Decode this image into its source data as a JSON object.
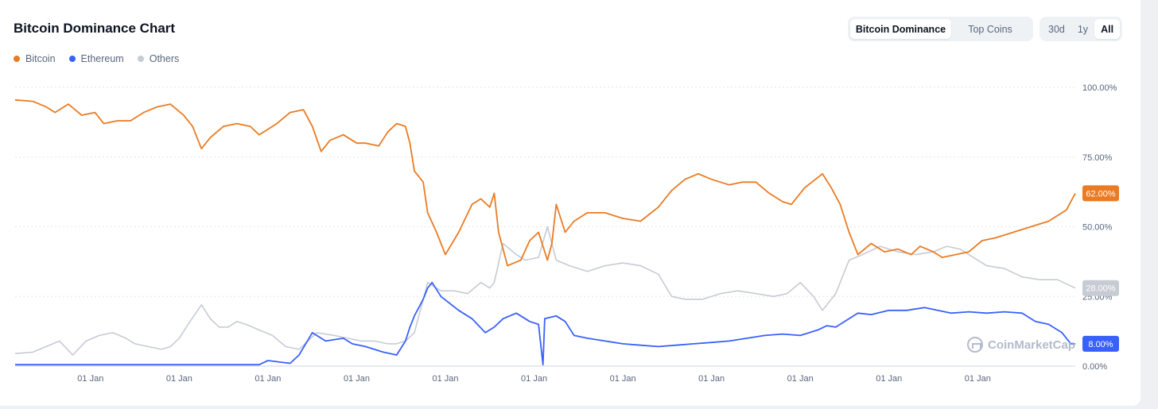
{
  "header": {
    "title": "Bitcoin Dominance Chart",
    "view_tabs": [
      {
        "label": "Bitcoin Dominance",
        "active": true
      },
      {
        "label": "Top Coins",
        "active": false
      }
    ],
    "range_tabs": [
      {
        "label": "30d",
        "active": false
      },
      {
        "label": "1y",
        "active": false
      },
      {
        "label": "All",
        "active": true
      }
    ]
  },
  "legend": [
    {
      "name": "Bitcoin",
      "color": "#ea7b23"
    },
    {
      "name": "Ethereum",
      "color": "#3861fb"
    },
    {
      "name": "Others",
      "color": "#c7cbd4"
    }
  ],
  "watermark": {
    "text": "CoinMarketCap",
    "icon": "coinmarketcap-logo-icon"
  },
  "chart_data": {
    "type": "line",
    "title": "Bitcoin Dominance Chart",
    "ylim": [
      0,
      100
    ],
    "y_ticks": [
      {
        "value": 100,
        "label": "100.00%"
      },
      {
        "value": 75,
        "label": "75.00%"
      },
      {
        "value": 50,
        "label": "50.00%"
      },
      {
        "value": 25,
        "label": "25.00%"
      },
      {
        "value": 0,
        "label": "0.00%"
      }
    ],
    "x_tick_labels": [
      "01 Jan",
      "01 Jan",
      "01 Jan",
      "01 Jan",
      "01 Jan",
      "01 Jan",
      "01 Jan",
      "01 Jan",
      "01 Jan",
      "01 Jan",
      "01 Jan"
    ],
    "x_tick_positions": [
      0.5,
      1.5,
      2.5,
      3.5,
      4.5,
      5.5,
      6.5,
      7.5,
      8.5,
      9.5,
      10.5
    ],
    "x_range": [
      -0.35,
      11.6
    ],
    "grid": true,
    "legend_placement": "top-left",
    "series": [
      {
        "name": "Bitcoin",
        "color": "#ea7b23",
        "current_label": "62.00%",
        "points": [
          [
            -0.35,
            95.5
          ],
          [
            -0.15,
            95
          ],
          [
            0,
            93
          ],
          [
            0.1,
            91
          ],
          [
            0.25,
            94
          ],
          [
            0.4,
            90
          ],
          [
            0.55,
            91
          ],
          [
            0.65,
            87
          ],
          [
            0.8,
            88
          ],
          [
            0.95,
            88
          ],
          [
            1.1,
            91
          ],
          [
            1.25,
            93
          ],
          [
            1.4,
            94
          ],
          [
            1.55,
            90
          ],
          [
            1.65,
            86
          ],
          [
            1.75,
            78
          ],
          [
            1.85,
            82
          ],
          [
            2.0,
            86
          ],
          [
            2.15,
            87
          ],
          [
            2.3,
            86
          ],
          [
            2.4,
            83
          ],
          [
            2.5,
            85
          ],
          [
            2.6,
            87
          ],
          [
            2.75,
            91
          ],
          [
            2.9,
            92
          ],
          [
            3.0,
            86
          ],
          [
            3.1,
            77
          ],
          [
            3.2,
            81
          ],
          [
            3.35,
            83
          ],
          [
            3.5,
            80
          ],
          [
            3.6,
            80
          ],
          [
            3.75,
            79
          ],
          [
            3.85,
            84
          ],
          [
            3.95,
            87
          ],
          [
            4.05,
            86
          ],
          [
            4.1,
            80
          ],
          [
            4.15,
            70
          ],
          [
            4.25,
            66
          ],
          [
            4.3,
            55
          ],
          [
            4.4,
            48
          ],
          [
            4.5,
            40
          ],
          [
            4.65,
            48
          ],
          [
            4.8,
            58
          ],
          [
            4.9,
            60
          ],
          [
            5.0,
            57
          ],
          [
            5.05,
            62
          ],
          [
            5.1,
            48
          ],
          [
            5.2,
            36
          ],
          [
            5.35,
            38
          ],
          [
            5.45,
            45
          ],
          [
            5.55,
            48
          ],
          [
            5.65,
            38
          ],
          [
            5.7,
            44
          ],
          [
            5.75,
            58
          ],
          [
            5.85,
            48
          ],
          [
            5.95,
            52
          ],
          [
            6.1,
            55
          ],
          [
            6.3,
            55
          ],
          [
            6.5,
            53
          ],
          [
            6.7,
            52
          ],
          [
            6.9,
            57
          ],
          [
            7.05,
            63
          ],
          [
            7.2,
            67
          ],
          [
            7.35,
            69
          ],
          [
            7.5,
            67
          ],
          [
            7.7,
            65
          ],
          [
            7.85,
            66
          ],
          [
            8.0,
            66
          ],
          [
            8.15,
            62
          ],
          [
            8.3,
            59
          ],
          [
            8.4,
            58
          ],
          [
            8.55,
            64
          ],
          [
            8.75,
            69
          ],
          [
            8.85,
            64
          ],
          [
            8.95,
            58
          ],
          [
            9.05,
            48
          ],
          [
            9.15,
            40
          ],
          [
            9.3,
            44
          ],
          [
            9.45,
            41
          ],
          [
            9.6,
            42
          ],
          [
            9.75,
            40
          ],
          [
            9.85,
            43
          ],
          [
            10.0,
            41
          ],
          [
            10.1,
            39
          ],
          [
            10.25,
            40
          ],
          [
            10.4,
            41
          ],
          [
            10.55,
            45
          ],
          [
            10.7,
            46
          ],
          [
            10.9,
            48
          ],
          [
            11.1,
            50
          ],
          [
            11.3,
            52
          ],
          [
            11.5,
            56
          ],
          [
            11.6,
            62
          ]
        ]
      },
      {
        "name": "Ethereum",
        "color": "#3861fb",
        "current_label": "8.00%",
        "points": [
          [
            -0.35,
            0.5
          ],
          [
            1.5,
            0.5
          ],
          [
            2.4,
            0.5
          ],
          [
            2.5,
            2
          ],
          [
            2.75,
            1
          ],
          [
            2.85,
            4
          ],
          [
            3.0,
            12
          ],
          [
            3.15,
            9
          ],
          [
            3.35,
            10
          ],
          [
            3.45,
            8
          ],
          [
            3.6,
            7
          ],
          [
            3.8,
            5
          ],
          [
            3.95,
            4
          ],
          [
            4.05,
            9
          ],
          [
            4.1,
            14
          ],
          [
            4.15,
            18
          ],
          [
            4.25,
            24
          ],
          [
            4.3,
            28
          ],
          [
            4.35,
            30
          ],
          [
            4.45,
            25
          ],
          [
            4.65,
            20
          ],
          [
            4.8,
            17
          ],
          [
            4.95,
            12
          ],
          [
            5.05,
            14
          ],
          [
            5.15,
            17
          ],
          [
            5.3,
            19
          ],
          [
            5.45,
            16
          ],
          [
            5.55,
            15
          ],
          [
            5.6,
            0.5
          ],
          [
            5.62,
            17
          ],
          [
            5.75,
            18
          ],
          [
            5.85,
            16
          ],
          [
            5.95,
            11
          ],
          [
            6.1,
            10
          ],
          [
            6.3,
            9
          ],
          [
            6.5,
            8
          ],
          [
            6.7,
            7.5
          ],
          [
            6.9,
            7
          ],
          [
            7.1,
            7.5
          ],
          [
            7.3,
            8
          ],
          [
            7.5,
            8.5
          ],
          [
            7.7,
            9
          ],
          [
            7.9,
            10
          ],
          [
            8.1,
            11
          ],
          [
            8.3,
            11.5
          ],
          [
            8.5,
            11
          ],
          [
            8.7,
            13
          ],
          [
            8.8,
            14.5
          ],
          [
            8.9,
            14
          ],
          [
            9.0,
            16
          ],
          [
            9.15,
            19
          ],
          [
            9.3,
            18.5
          ],
          [
            9.5,
            20
          ],
          [
            9.7,
            20
          ],
          [
            9.9,
            21
          ],
          [
            10.05,
            20
          ],
          [
            10.2,
            19
          ],
          [
            10.4,
            19.5
          ],
          [
            10.6,
            19
          ],
          [
            10.8,
            19.5
          ],
          [
            11.0,
            19
          ],
          [
            11.15,
            16
          ],
          [
            11.3,
            15
          ],
          [
            11.45,
            12
          ],
          [
            11.55,
            8
          ],
          [
            11.6,
            8
          ]
        ]
      },
      {
        "name": "Others",
        "color": "#c7cbd4",
        "current_label": "28.00%",
        "points": [
          [
            -0.35,
            4.5
          ],
          [
            -0.15,
            5
          ],
          [
            0,
            7
          ],
          [
            0.15,
            9
          ],
          [
            0.3,
            4
          ],
          [
            0.45,
            9
          ],
          [
            0.6,
            11
          ],
          [
            0.75,
            12
          ],
          [
            0.9,
            10
          ],
          [
            1.0,
            8
          ],
          [
            1.15,
            7
          ],
          [
            1.3,
            6
          ],
          [
            1.4,
            7
          ],
          [
            1.5,
            10
          ],
          [
            1.6,
            15
          ],
          [
            1.75,
            22
          ],
          [
            1.85,
            17
          ],
          [
            1.95,
            14
          ],
          [
            2.05,
            14
          ],
          [
            2.15,
            16
          ],
          [
            2.25,
            15
          ],
          [
            2.4,
            13
          ],
          [
            2.55,
            11
          ],
          [
            2.7,
            7
          ],
          [
            2.85,
            6
          ],
          [
            2.95,
            9
          ],
          [
            3.05,
            12
          ],
          [
            3.25,
            11
          ],
          [
            3.4,
            10
          ],
          [
            3.55,
            9
          ],
          [
            3.7,
            9
          ],
          [
            3.85,
            8
          ],
          [
            3.95,
            8
          ],
          [
            4.05,
            9
          ],
          [
            4.15,
            12
          ],
          [
            4.3,
            30
          ],
          [
            4.45,
            27
          ],
          [
            4.6,
            27
          ],
          [
            4.75,
            26
          ],
          [
            4.9,
            30
          ],
          [
            5.0,
            28
          ],
          [
            5.05,
            30
          ],
          [
            5.15,
            44
          ],
          [
            5.3,
            40
          ],
          [
            5.4,
            38
          ],
          [
            5.55,
            39
          ],
          [
            5.65,
            50
          ],
          [
            5.75,
            38
          ],
          [
            5.9,
            36
          ],
          [
            6.1,
            34
          ],
          [
            6.3,
            36
          ],
          [
            6.5,
            37
          ],
          [
            6.7,
            36
          ],
          [
            6.9,
            33
          ],
          [
            7.05,
            25
          ],
          [
            7.2,
            24
          ],
          [
            7.4,
            24
          ],
          [
            7.6,
            26
          ],
          [
            7.8,
            27
          ],
          [
            8.0,
            26
          ],
          [
            8.2,
            25
          ],
          [
            8.35,
            26
          ],
          [
            8.5,
            30
          ],
          [
            8.65,
            25
          ],
          [
            8.75,
            20
          ],
          [
            8.9,
            26
          ],
          [
            9.05,
            38
          ],
          [
            9.2,
            40
          ],
          [
            9.4,
            43
          ],
          [
            9.6,
            41
          ],
          [
            9.8,
            40
          ],
          [
            10.0,
            41
          ],
          [
            10.15,
            43
          ],
          [
            10.3,
            42
          ],
          [
            10.45,
            39
          ],
          [
            10.6,
            36
          ],
          [
            10.8,
            35
          ],
          [
            11.0,
            32
          ],
          [
            11.2,
            31
          ],
          [
            11.4,
            31
          ],
          [
            11.6,
            28
          ]
        ]
      }
    ]
  }
}
